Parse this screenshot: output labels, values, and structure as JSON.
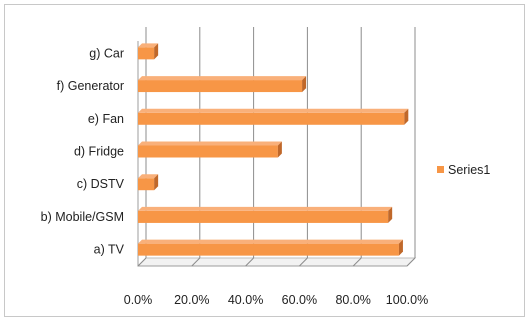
{
  "chart_data": {
    "type": "bar",
    "orientation": "horizontal",
    "style": "3d",
    "categories": [
      "a) TV",
      "b) Mobile/GSM",
      "c) DSTV",
      "d) Fridge",
      "e) Fan",
      "f) Generator",
      "g) Car"
    ],
    "series": [
      {
        "name": "Series1",
        "values": [
          0.97,
          0.93,
          0.06,
          0.52,
          0.99,
          0.61,
          0.06
        ],
        "color": "#f79646"
      }
    ],
    "xlim": [
      0,
      1.0
    ],
    "x_ticks": [
      "0.0%",
      "20.0%",
      "40.0%",
      "60.0%",
      "80.0%",
      "100.0%"
    ],
    "grid": true,
    "legend_position": "right"
  }
}
